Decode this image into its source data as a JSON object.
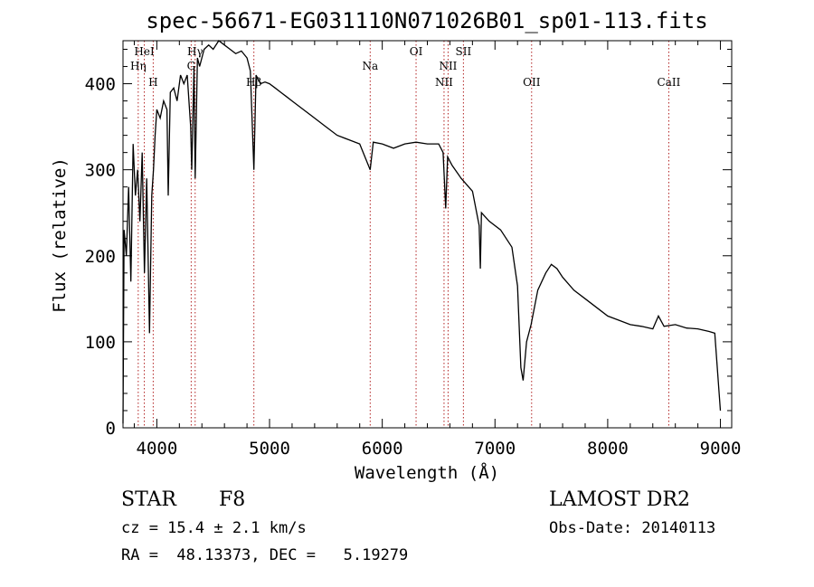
{
  "chart_data": {
    "type": "line",
    "title": "spec-56671-EG031110N071026B01_sp01-113.fits",
    "xlabel": "Wavelength (Å)",
    "ylabel": "Flux (relative)",
    "xlim": [
      3700,
      9100
    ],
    "ylim": [
      0,
      450
    ],
    "xticks": [
      4000,
      5000,
      6000,
      7000,
      8000,
      9000
    ],
    "yticks": [
      0,
      100,
      200,
      300,
      400
    ],
    "grid": false,
    "series": [
      {
        "x": [
          3700,
          3710,
          3730,
          3750,
          3770,
          3790,
          3810,
          3830,
          3850,
          3870,
          3890,
          3910,
          3935,
          3955,
          3970,
          3985,
          4000,
          4030,
          4060,
          4090,
          4101,
          4120,
          4150,
          4180,
          4210,
          4240,
          4270,
          4300,
          4310,
          4330,
          4340,
          4360,
          4380,
          4420,
          4460,
          4500,
          4550,
          4600,
          4650,
          4700,
          4750,
          4800,
          4830,
          4861,
          4880,
          4920,
          4960,
          5000,
          5050,
          5100,
          5150,
          5200,
          5300,
          5400,
          5500,
          5600,
          5700,
          5800,
          5893,
          5920,
          6000,
          6100,
          6200,
          6300,
          6400,
          6500,
          6540,
          6563,
          6580,
          6620,
          6700,
          6800,
          6860,
          6870,
          6880,
          6950,
          7050,
          7150,
          7200,
          7230,
          7250,
          7280,
          7320,
          7380,
          7450,
          7500,
          7550,
          7600,
          7700,
          7800,
          7900,
          8000,
          8100,
          8200,
          8300,
          8400,
          8450,
          8500,
          8600,
          8700,
          8800,
          8900,
          8950,
          9000
        ],
        "y": [
          5,
          230,
          200,
          280,
          170,
          330,
          270,
          300,
          240,
          320,
          180,
          290,
          110,
          270,
          300,
          340,
          370,
          360,
          380,
          370,
          270,
          390,
          395,
          380,
          410,
          400,
          410,
          350,
          300,
          420,
          290,
          430,
          420,
          440,
          445,
          440,
          450,
          445,
          440,
          435,
          438,
          430,
          415,
          300,
          410,
          400,
          402,
          400,
          395,
          390,
          385,
          380,
          370,
          360,
          350,
          340,
          335,
          330,
          300,
          332,
          330,
          325,
          330,
          332,
          330,
          330,
          320,
          255,
          315,
          305,
          290,
          275,
          235,
          185,
          250,
          240,
          230,
          210,
          165,
          70,
          55,
          100,
          120,
          160,
          180,
          190,
          185,
          175,
          160,
          150,
          140,
          130,
          125,
          120,
          118,
          115,
          130,
          118,
          120,
          116,
          115,
          112,
          110,
          20
        ]
      }
    ],
    "line_markers": [
      {
        "label": "HeI",
        "x": 3889,
        "row": 0
      },
      {
        "label": "Hη",
        "x": 3835,
        "row": 1
      },
      {
        "label": "H",
        "x": 3968,
        "row": 2
      },
      {
        "label": "Hγ",
        "x": 4340,
        "row": 0
      },
      {
        "label": "G",
        "x": 4305,
        "row": 1
      },
      {
        "label": "Hβ",
        "x": 4861,
        "row": 2
      },
      {
        "label": "Na",
        "x": 5893,
        "row": 1
      },
      {
        "label": "OI",
        "x": 6300,
        "row": 0
      },
      {
        "label": "NII",
        "x": 6584,
        "row": 1
      },
      {
        "label": "NII",
        "x": 6548,
        "row": 2
      },
      {
        "label": "OII",
        "x": 7325,
        "row": 2
      },
      {
        "label": "SII",
        "x": 6720,
        "row": 0
      },
      {
        "label": "CaII",
        "x": 8542,
        "row": 2
      }
    ]
  },
  "info": {
    "class_label": "STAR",
    "subclass": "F8",
    "survey": "LAMOST DR2",
    "cz": "cz = 15.4 ± 2.1 km/s",
    "obs_date": "Obs-Date: 20140113",
    "coords": "RA =  48.13373, DEC =   5.19279"
  },
  "colors": {
    "line": "#000000",
    "marker": "#b22222"
  }
}
